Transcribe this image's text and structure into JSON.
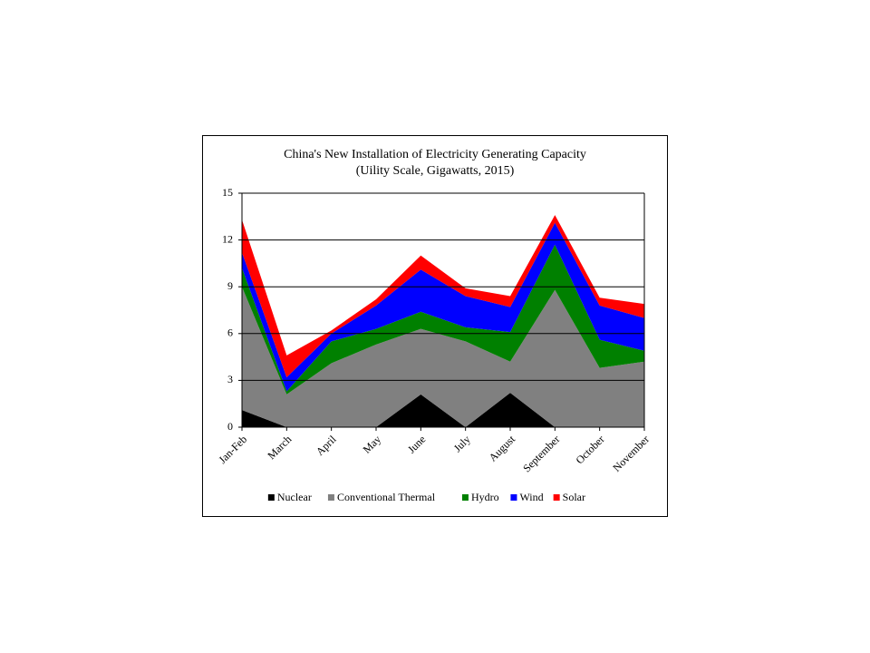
{
  "chart_data": {
    "type": "stacked_area",
    "title": "China's New Installation of Electricity Generating Capacity",
    "subtitle": "(Uility Scale, Gigawatts, 2015)",
    "categories": [
      "Jan-Feb",
      "March",
      "April",
      "May",
      "June",
      "July",
      "August",
      "September",
      "October",
      "November"
    ],
    "series": [
      {
        "name": "Nuclear",
        "color": "#000000",
        "values": [
          1.1,
          0,
          0,
          0,
          2.1,
          0,
          2.2,
          0,
          0,
          0
        ]
      },
      {
        "name": "Conventional Thermal",
        "color": "#808080",
        "values": [
          7.9,
          2.1,
          4.1,
          5.3,
          4.2,
          5.5,
          2.0,
          8.8,
          3.8,
          4.2
        ]
      },
      {
        "name": "Hydro",
        "color": "#008000",
        "values": [
          1.2,
          0.2,
          1.4,
          1.0,
          1.1,
          0.9,
          1.9,
          2.9,
          1.8,
          0.7
        ]
      },
      {
        "name": "Wind",
        "color": "#0000ff",
        "values": [
          1.0,
          0.9,
          0.5,
          1.5,
          2.7,
          2.0,
          1.6,
          1.4,
          2.2,
          2.1
        ]
      },
      {
        "name": "Solar",
        "color": "#ff0000",
        "values": [
          2.1,
          1.4,
          0.2,
          0.4,
          0.9,
          0.5,
          0.7,
          0.5,
          0.5,
          0.9
        ]
      }
    ],
    "ylim": [
      0,
      15
    ],
    "yticks": [
      0,
      3,
      6,
      9,
      12,
      15
    ],
    "grid": true,
    "legend": "bottom"
  }
}
